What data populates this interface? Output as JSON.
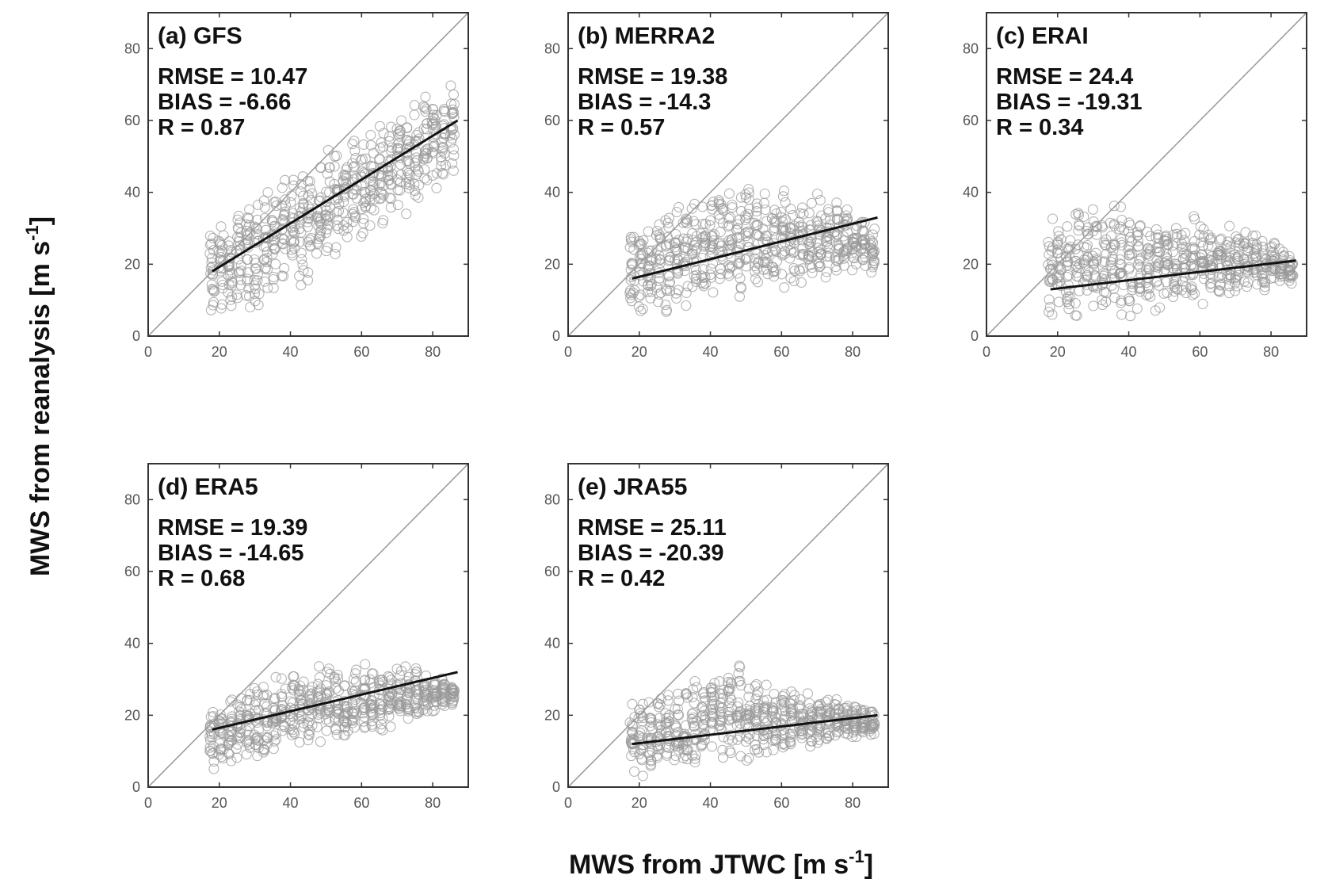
{
  "figure": {
    "xlabel_main": "MWS from JTWC [m s",
    "xlabel_sup": "-1",
    "xlabel_end": "]",
    "ylabel_main": "MWS from reanalysis [m s",
    "ylabel_sup": "-1",
    "ylabel_end": "]"
  },
  "colors": {
    "frame": "#333333",
    "identity_line": "#999999",
    "fit_line": "#111111",
    "markers": "#9a9a9a"
  },
  "chart_data": [
    {
      "type": "scatter",
      "title": "(a) GFS",
      "stats": [
        "RMSE = 10.47",
        "BIAS = -6.66",
        "R = 0.87"
      ],
      "xlim": [
        0,
        90
      ],
      "ylim": [
        0,
        90
      ],
      "xticks": [
        0,
        20,
        40,
        60,
        80
      ],
      "yticks": [
        0,
        20,
        40,
        60,
        80
      ],
      "identity_line": [
        [
          0,
          0
        ],
        [
          90,
          90
        ]
      ],
      "fit_line": [
        [
          18,
          18
        ],
        [
          87,
          60
        ]
      ],
      "scatter_envelope": {
        "x_range": [
          18,
          87
        ],
        "lower": [
          [
            18,
            3
          ],
          [
            30,
            7
          ],
          [
            45,
            15
          ],
          [
            60,
            25
          ],
          [
            75,
            35
          ],
          [
            87,
            45
          ]
        ],
        "upper": [
          [
            18,
            32
          ],
          [
            30,
            40
          ],
          [
            45,
            50
          ],
          [
            60,
            58
          ],
          [
            75,
            67
          ],
          [
            87,
            72
          ]
        ]
      }
    },
    {
      "type": "scatter",
      "title": "(b) MERRA2",
      "stats": [
        "RMSE = 19.38",
        "BIAS = -14.3",
        "R = 0.57"
      ],
      "xlim": [
        0,
        90
      ],
      "ylim": [
        0,
        90
      ],
      "xticks": [
        0,
        20,
        40,
        60,
        80
      ],
      "yticks": [
        0,
        20,
        40,
        60,
        80
      ],
      "identity_line": [
        [
          0,
          0
        ],
        [
          90,
          90
        ]
      ],
      "fit_line": [
        [
          18,
          16
        ],
        [
          87,
          33
        ]
      ],
      "scatter_envelope": {
        "x_range": [
          18,
          87
        ],
        "lower": [
          [
            18,
            5
          ],
          [
            30,
            6
          ],
          [
            45,
            6
          ],
          [
            60,
            10
          ],
          [
            75,
            15
          ],
          [
            87,
            17
          ]
        ],
        "upper": [
          [
            18,
            30
          ],
          [
            30,
            38
          ],
          [
            45,
            42
          ],
          [
            60,
            44
          ],
          [
            75,
            40
          ],
          [
            87,
            30
          ]
        ]
      }
    },
    {
      "type": "scatter",
      "title": "(c) ERAI",
      "stats": [
        "RMSE = 24.4",
        "BIAS = -19.31",
        "R = 0.34"
      ],
      "xlim": [
        0,
        90
      ],
      "ylim": [
        0,
        90
      ],
      "xticks": [
        0,
        20,
        40,
        60,
        80
      ],
      "yticks": [
        0,
        20,
        40,
        60,
        80
      ],
      "identity_line": [
        [
          0,
          0
        ],
        [
          90,
          90
        ]
      ],
      "fit_line": [
        [
          18,
          13
        ],
        [
          87,
          21
        ]
      ],
      "scatter_envelope": {
        "x_range": [
          18,
          87
        ],
        "lower": [
          [
            18,
            4
          ],
          [
            30,
            5
          ],
          [
            45,
            5
          ],
          [
            60,
            8
          ],
          [
            75,
            12
          ],
          [
            87,
            14
          ]
        ],
        "upper": [
          [
            18,
            36
          ],
          [
            30,
            38
          ],
          [
            45,
            36
          ],
          [
            60,
            34
          ],
          [
            75,
            30
          ],
          [
            87,
            24
          ]
        ]
      }
    },
    {
      "type": "scatter",
      "title": "(d) ERA5",
      "stats": [
        "RMSE = 19.39",
        "BIAS = -14.65",
        "R = 0.68"
      ],
      "xlim": [
        0,
        90
      ],
      "ylim": [
        0,
        90
      ],
      "xticks": [
        0,
        20,
        40,
        60,
        80
      ],
      "yticks": [
        0,
        20,
        40,
        60,
        80
      ],
      "identity_line": [
        [
          0,
          0
        ],
        [
          90,
          90
        ]
      ],
      "fit_line": [
        [
          18,
          16
        ],
        [
          87,
          32
        ]
      ],
      "scatter_envelope": {
        "x_range": [
          18,
          87
        ],
        "lower": [
          [
            18,
            3
          ],
          [
            30,
            6
          ],
          [
            45,
            10
          ],
          [
            60,
            14
          ],
          [
            75,
            18
          ],
          [
            87,
            22
          ]
        ],
        "upper": [
          [
            18,
            24
          ],
          [
            30,
            30
          ],
          [
            45,
            35
          ],
          [
            60,
            35
          ],
          [
            75,
            34
          ],
          [
            87,
            30
          ]
        ]
      }
    },
    {
      "type": "scatter",
      "title": "(e) JRA55",
      "stats": [
        "RMSE = 25.11",
        "BIAS = -20.39",
        "R = 0.42"
      ],
      "xlim": [
        0,
        90
      ],
      "ylim": [
        0,
        90
      ],
      "xticks": [
        0,
        20,
        40,
        60,
        80
      ],
      "yticks": [
        0,
        20,
        40,
        60,
        80
      ],
      "identity_line": [
        [
          0,
          0
        ],
        [
          90,
          90
        ]
      ],
      "fit_line": [
        [
          18,
          12
        ],
        [
          87,
          20
        ]
      ],
      "scatter_envelope": {
        "x_range": [
          18,
          87
        ],
        "lower": [
          [
            18,
            2
          ],
          [
            30,
            3
          ],
          [
            45,
            6
          ],
          [
            60,
            9
          ],
          [
            75,
            12
          ],
          [
            87,
            14
          ]
        ],
        "upper": [
          [
            18,
            24
          ],
          [
            30,
            28
          ],
          [
            45,
            36
          ],
          [
            60,
            28
          ],
          [
            75,
            26
          ],
          [
            87,
            22
          ]
        ]
      }
    }
  ]
}
